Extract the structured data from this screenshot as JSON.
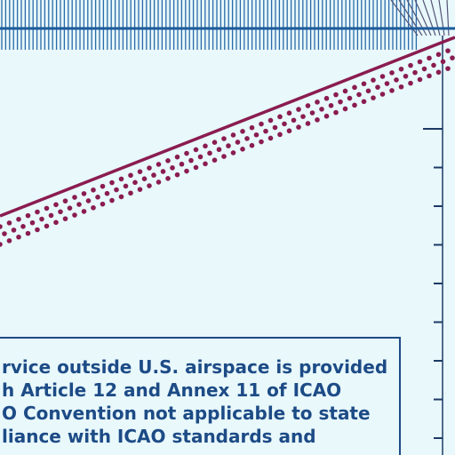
{
  "notice": {
    "lines": [
      "rvice outside U.S. airspace is provided",
      "h Article 12 and Annex 11 of ICAO",
      "O Convention not applicable to state",
      "liance with ICAO standards and"
    ]
  }
}
